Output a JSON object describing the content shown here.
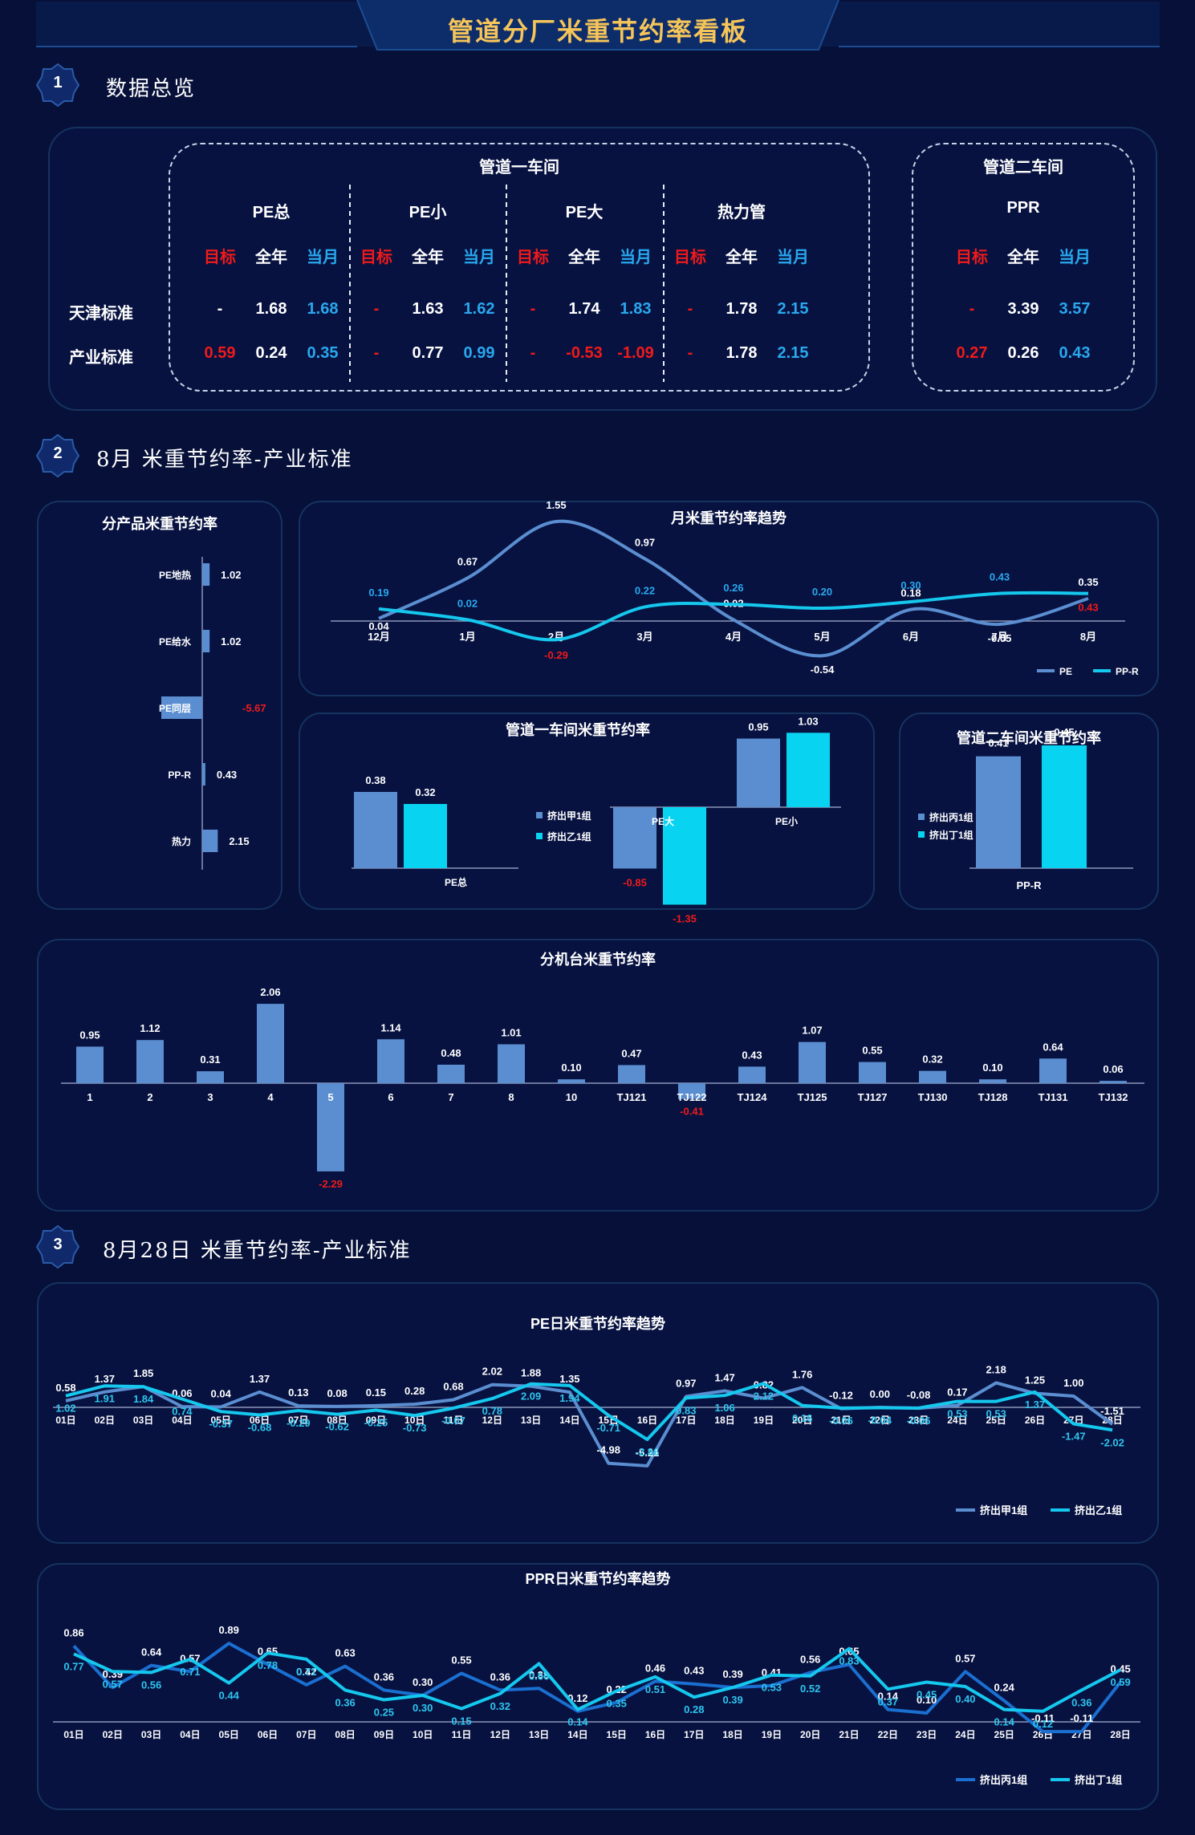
{
  "header": {
    "title": "管道分厂米重节约率看板"
  },
  "sections": [
    {
      "num": "1",
      "title": "数据总览"
    },
    {
      "num": "2",
      "title": "8月 米重节约率-产业标准"
    },
    {
      "num": "3",
      "title": "8月28日 米重节约率-产业标准"
    }
  ],
  "overview": {
    "ws1_title": "管道一车间",
    "ws2_title": "管道二车间",
    "col_target": "目标",
    "col_year": "全年",
    "col_month": "当月",
    "row_labels": [
      "天津标准",
      "产业标准"
    ],
    "groups": [
      {
        "name": "PE总",
        "rows": [
          [
            "-",
            "1.68",
            "1.68"
          ],
          [
            "0.59",
            "0.24",
            "0.35"
          ]
        ]
      },
      {
        "name": "PE小",
        "rows": [
          [
            "-",
            "1.63",
            "1.62"
          ],
          [
            "-",
            "0.77",
            "0.99"
          ]
        ]
      },
      {
        "name": "PE大",
        "rows": [
          [
            "-",
            "1.74",
            "1.83"
          ],
          [
            "-",
            "-0.53",
            "-1.09"
          ]
        ]
      },
      {
        "name": "热力管",
        "rows": [
          [
            "-",
            "1.78",
            "2.15"
          ],
          [
            "-",
            "1.78",
            "2.15"
          ]
        ]
      },
      {
        "name": "PPR",
        "rows": [
          [
            "-",
            "3.39",
            "3.57"
          ],
          [
            "0.27",
            "0.26",
            "0.43"
          ]
        ]
      }
    ]
  },
  "chart_data": [
    {
      "id": "by-product",
      "type": "bar",
      "orientation": "horizontal",
      "title": "分产品米重节约率",
      "categories": [
        "PE地热",
        "PE给水",
        "PE同层",
        "PP-R",
        "热力"
      ],
      "values": [
        1.02,
        1.02,
        -5.67,
        0.43,
        2.15
      ],
      "value_labels": [
        "1.02",
        "1.02",
        "-5.67",
        "0.43",
        "2.15"
      ]
    },
    {
      "id": "monthly-trend",
      "type": "line",
      "title": "月米重节约率趋势",
      "categories": [
        "12月",
        "1月",
        "2月",
        "3月",
        "4月",
        "5月",
        "6月",
        "7月",
        "8月"
      ],
      "series": [
        {
          "name": "PE",
          "color": "#5b8ed0",
          "values": [
            0.04,
            0.67,
            1.55,
            0.97,
            0.02,
            -0.54,
            0.18,
            -0.05,
            0.35
          ]
        },
        {
          "name": "PP-R",
          "color": "#15c8ee",
          "values": [
            0.19,
            0.02,
            -0.29,
            0.22,
            0.26,
            0.2,
            0.3,
            0.43,
            0.43
          ]
        }
      ],
      "legend": "bottom-right"
    },
    {
      "id": "ws1",
      "type": "bar",
      "title": "管道一车间米重节约率",
      "categories": [
        "PE总",
        "PE大",
        "PE小"
      ],
      "series": [
        {
          "name": "挤出甲1组",
          "color": "#5b8ed0",
          "values": [
            0.38,
            -0.85,
            0.95
          ]
        },
        {
          "name": "挤出乙1组",
          "color": "#08d4f1",
          "values": [
            0.32,
            -1.35,
            1.03
          ]
        }
      ]
    },
    {
      "id": "ws2",
      "type": "bar",
      "title": "管道二车间米重节约率",
      "categories": [
        "PP-R"
      ],
      "series": [
        {
          "name": "挤出丙1组",
          "color": "#5b8ed0",
          "values": [
            0.41
          ]
        },
        {
          "name": "挤出丁1组",
          "color": "#08d4f1",
          "values": [
            0.45
          ]
        }
      ]
    },
    {
      "id": "by-machine",
      "type": "bar",
      "title": "分机台米重节约率",
      "categories": [
        "1",
        "2",
        "3",
        "4",
        "5",
        "6",
        "7",
        "8",
        "10",
        "TJ121",
        "TJ122",
        "TJ124",
        "TJ125",
        "TJ127",
        "TJ130",
        "TJ128",
        "TJ131",
        "TJ132"
      ],
      "values": [
        0.95,
        1.12,
        0.31,
        2.06,
        -2.29,
        1.14,
        0.48,
        1.01,
        0.1,
        0.47,
        -0.41,
        0.43,
        1.07,
        0.55,
        0.32,
        0.1,
        0.64,
        0.06
      ],
      "value_labels": [
        "0.95",
        "1.12",
        "0.31",
        "2.06",
        "-2.29",
        "1.14",
        "0.48",
        "1.01",
        "0.10",
        "0.47",
        "-0.41",
        "0.43",
        "1.07",
        "0.55",
        "0.32",
        "0.10",
        "0.64",
        "0.06"
      ]
    },
    {
      "id": "pe-daily",
      "type": "line",
      "title": "PE日米重节约率趋势",
      "categories": [
        "01日",
        "02日",
        "03日",
        "04日",
        "05日",
        "06日",
        "07日",
        "08日",
        "09日",
        "10日",
        "11日",
        "12日",
        "13日",
        "14日",
        "15日",
        "16日",
        "17日",
        "18日",
        "19日",
        "20日",
        "21日",
        "22日",
        "23日",
        "24日",
        "25日",
        "26日",
        "27日",
        "28日"
      ],
      "series": [
        {
          "name": "挤出甲1组",
          "color": "#5b8ed0",
          "values": [
            0.58,
            1.37,
            1.85,
            0.06,
            0.04,
            1.37,
            0.13,
            0.08,
            0.15,
            0.28,
            0.68,
            2.02,
            1.88,
            1.35,
            -4.98,
            -5.21,
            0.97,
            1.47,
            0.82,
            1.76,
            -0.12,
            0.0,
            -0.08,
            0.17,
            2.18,
            1.25,
            1.0,
            -1.51
          ]
        },
        {
          "name": "挤出乙1组",
          "color": "#15c8ee",
          "values": [
            1.02,
            1.91,
            1.84,
            0.74,
            -0.37,
            -0.68,
            -0.29,
            -0.62,
            -0.25,
            -0.73,
            -0.07,
            0.78,
            2.09,
            1.94,
            -0.71,
            -2.86,
            0.83,
            1.06,
            2.12,
            0.16,
            -0.06,
            -0.04,
            -0.06,
            0.53,
            0.53,
            1.37,
            -1.47,
            -2.02
          ]
        }
      ],
      "legend": "bottom-right"
    },
    {
      "id": "ppr-daily",
      "type": "line",
      "title": "PPR日米重节约率趋势",
      "categories": [
        "01日",
        "02日",
        "03日",
        "04日",
        "05日",
        "06日",
        "07日",
        "08日",
        "09日",
        "10日",
        "11日",
        "12日",
        "13日",
        "14日",
        "15日",
        "16日",
        "17日",
        "18日",
        "19日",
        "20日",
        "21日",
        "22日",
        "23日",
        "24日",
        "25日",
        "26日",
        "27日",
        "28日"
      ],
      "series": [
        {
          "name": "挤出丙1组",
          "color": "#1a6fd0",
          "values": [
            0.86,
            0.39,
            0.64,
            0.57,
            0.89,
            0.65,
            0.42,
            0.63,
            0.36,
            0.3,
            0.55,
            0.36,
            0.38,
            0.12,
            0.22,
            0.46,
            0.43,
            0.39,
            0.41,
            0.56,
            0.65,
            0.14,
            0.1,
            0.57,
            0.24,
            -0.11,
            -0.11,
            0.45
          ]
        },
        {
          "name": "挤出丁1组",
          "color": "#15c8ee",
          "values": [
            0.77,
            0.57,
            0.56,
            0.71,
            0.44,
            0.78,
            0.71,
            0.36,
            0.25,
            0.3,
            0.15,
            0.32,
            0.66,
            0.14,
            0.35,
            0.51,
            0.28,
            0.39,
            0.53,
            0.52,
            0.83,
            0.37,
            0.45,
            0.4,
            0.14,
            0.12,
            0.36,
            0.59
          ]
        }
      ],
      "legend": "bottom-right"
    }
  ]
}
